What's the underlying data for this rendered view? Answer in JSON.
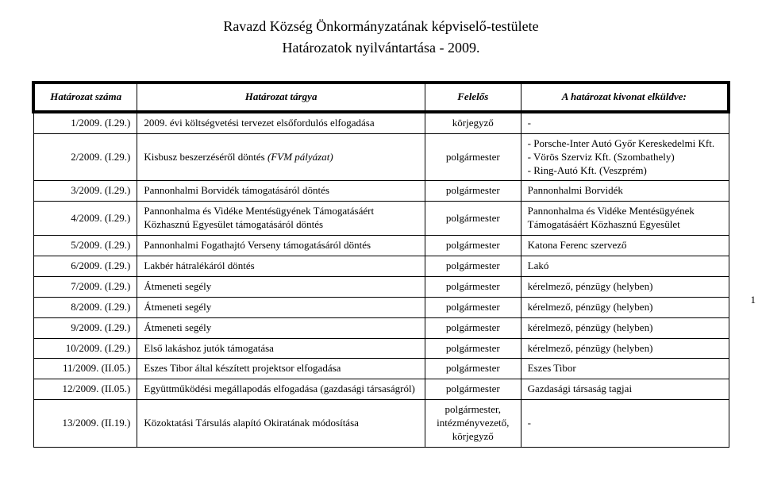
{
  "title": {
    "line1": "Ravazd Község Önkormányzatának képviselő-testülete",
    "line2": "Határozatok nyilvántartása - 2009."
  },
  "headers": {
    "num": "Határozat száma",
    "subj": "Határozat tárgya",
    "resp": "Felelős",
    "sent": "A határozat kivonat elküldve:"
  },
  "page_number": "1",
  "rows": [
    {
      "num": "1/2009. (I.29.)",
      "subj": "2009. évi költségvetési tervezet elsőfordulós elfogadása",
      "resp": "körjegyző",
      "sent": "-"
    },
    {
      "num": "2/2009. (I.29.)",
      "subj": "Kisbusz beszerzéséről döntés (FVM pályázat)",
      "subj_italic_part": "(FVM pályázat)",
      "resp": "polgármester",
      "sent_list": [
        "Porsche-Inter Autó Győr Kereskedelmi Kft.",
        "Vörös Szerviz Kft. (Szombathely)",
        "Ring-Autó Kft. (Veszprém)"
      ]
    },
    {
      "num": "3/2009. (I.29.)",
      "subj": "Pannonhalmi Borvidék támogatásáról döntés",
      "resp": "polgármester",
      "sent": "Pannonhalmi Borvidék"
    },
    {
      "num": "4/2009. (I.29.)",
      "subj": "Pannonhalma és Vidéke Mentésügyének Támogatásáért Közhasznú Egyesület támogatásáról döntés",
      "resp": "polgármester",
      "sent": "Pannonhalma és Vidéke Mentésügyének Támogatásáért Közhasznú Egyesület"
    },
    {
      "num": "5/2009. (I.29.)",
      "subj": "Pannonhalmi Fogathajtó Verseny támogatásáról döntés",
      "resp": "polgármester",
      "sent": "Katona Ferenc szervező"
    },
    {
      "num": "6/2009. (I.29.)",
      "subj": "Lakbér hátralékáról döntés",
      "resp": "polgármester",
      "sent": "Lakó"
    },
    {
      "num": "7/2009. (I.29.)",
      "subj": "Átmeneti segély",
      "resp": "polgármester",
      "sent": "kérelmező, pénzügy (helyben)"
    },
    {
      "num": "8/2009. (I.29.)",
      "subj": "Átmeneti segély",
      "resp": "polgármester",
      "sent": "kérelmező, pénzügy (helyben)"
    },
    {
      "num": "9/2009. (I.29.)",
      "subj": "Átmeneti segély",
      "resp": "polgármester",
      "sent": "kérelmező, pénzügy (helyben)"
    },
    {
      "num": "10/2009. (I.29.)",
      "subj": "Első lakáshoz jutók támogatása",
      "resp": "polgármester",
      "sent": "kérelmező, pénzügy (helyben)"
    },
    {
      "num": "11/2009. (II.05.)",
      "subj": "Eszes Tibor által készített projektsor elfogadása",
      "resp": "polgármester",
      "sent": "Eszes Tibor"
    },
    {
      "num": "12/2009. (II.05.)",
      "subj": "Együttműködési megállapodás elfogadása (gazdasági társaságról)",
      "resp": "polgármester",
      "sent": "Gazdasági társaság tagjai"
    },
    {
      "num": "13/2009. (II.19.)",
      "subj": "Közoktatási Társulás alapító Okiratának módosítása",
      "resp": "polgármester, intézményvezető, körjegyző",
      "sent": "-"
    }
  ]
}
